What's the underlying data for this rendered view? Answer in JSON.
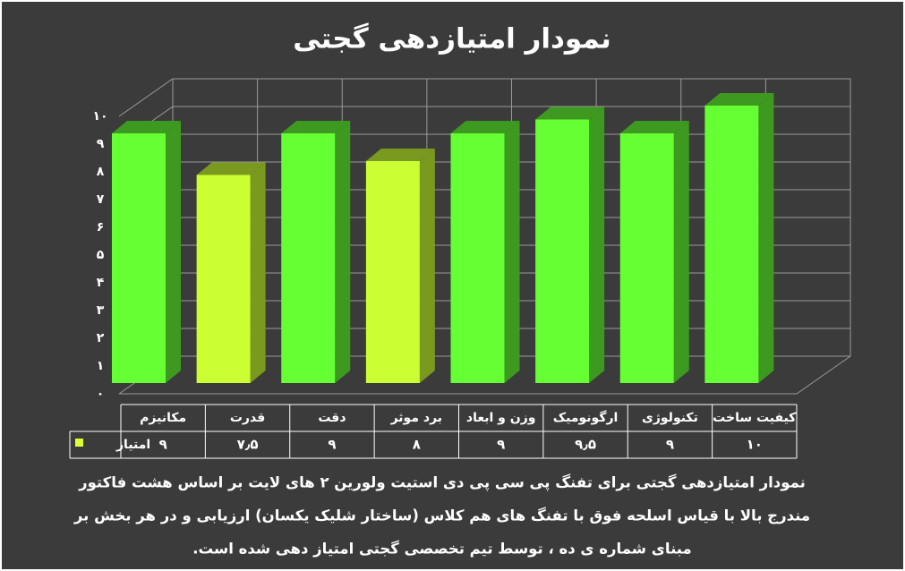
{
  "chart_data": {
    "type": "bar3d",
    "title": "نمودار امتیازدهی گجتی",
    "categories": [
      "مکانیزم",
      "قدرت",
      "دقت",
      "برد موثر",
      "وزن و ابعاد",
      "ارگونومیک",
      "تکنولوژی",
      "کیفیت ساخت"
    ],
    "series": [
      {
        "name": "امتیاز",
        "color": "#ddff33",
        "colors": [
          "#66ff33",
          "#ccff33",
          "#66ff33",
          "#ccff33",
          "#66ff33",
          "#66ff33",
          "#66ff33",
          "#66ff33"
        ],
        "values": [
          9,
          7.5,
          9,
          8,
          9,
          9.5,
          9,
          10
        ],
        "value_labels": [
          "۹",
          "۷٫۵",
          "۹",
          "۸",
          "۹",
          "۹٫۵",
          "۹",
          "۱۰"
        ]
      }
    ],
    "ylim": [
      0,
      10
    ],
    "yticks": [
      {
        "value": 0,
        "label": "۰"
      },
      {
        "value": 1,
        "label": "۱"
      },
      {
        "value": 2,
        "label": "۲"
      },
      {
        "value": 3,
        "label": "۳"
      },
      {
        "value": 4,
        "label": "۴"
      },
      {
        "value": 5,
        "label": "۵"
      },
      {
        "value": 6,
        "label": "۶"
      },
      {
        "value": 7,
        "label": "۷"
      },
      {
        "value": 8,
        "label": "۸"
      },
      {
        "value": 9,
        "label": "۹"
      },
      {
        "value": 10,
        "label": "۱۰"
      }
    ],
    "grid": true,
    "caption": [
      "نمودار امتیازدهی گجتی برای تفنگ پی سی پی دی استیت ولورین ۲ های لایت بر اساس هشت فاکتور",
      "مندرج بالا با قیاس اسلحه فوق با تفنگ های هم کلاس (ساختار شلیک یکسان) ارزیابی و در هر بخش بر",
      "مبنای شماره ی ده ، توسط تیم تخصصی گجتی امتیاز دهی شده است."
    ]
  }
}
